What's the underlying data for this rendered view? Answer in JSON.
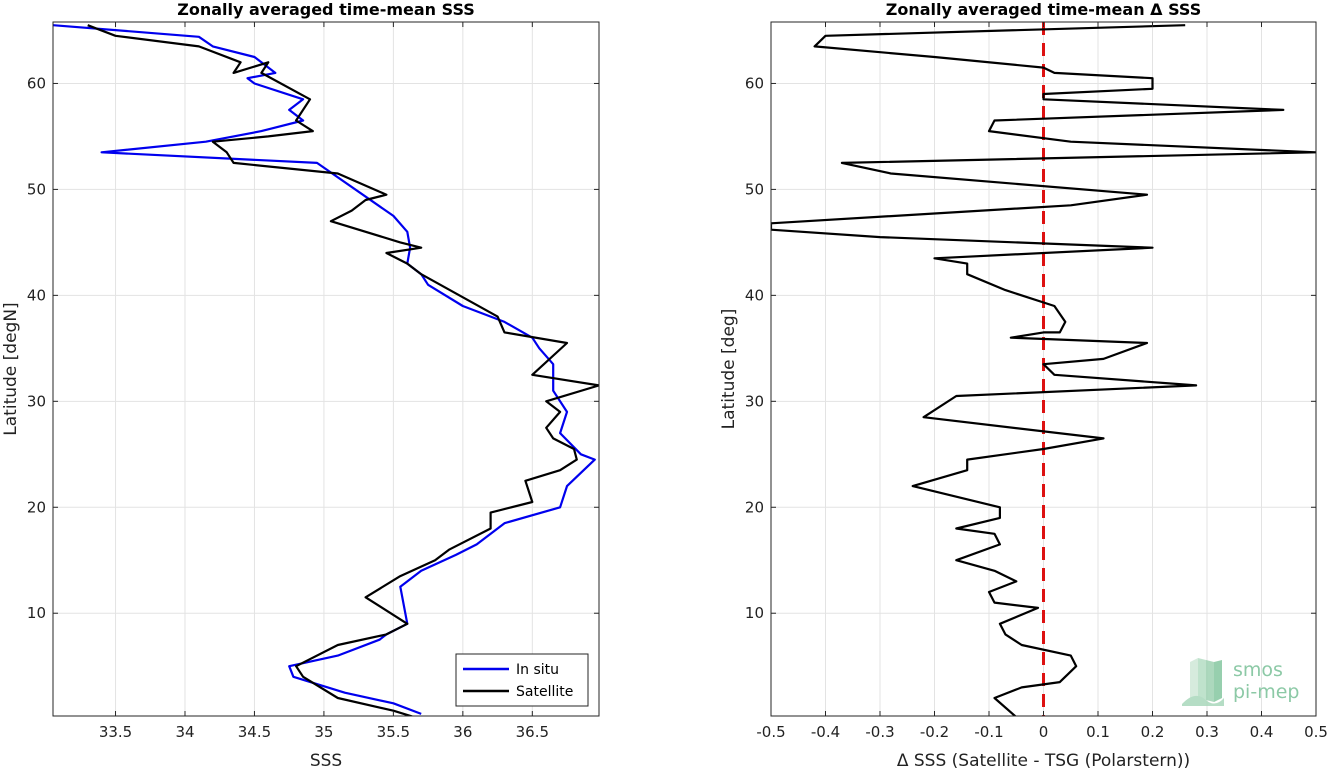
{
  "chart_data": [
    {
      "type": "line",
      "title": "Zonally averaged time-mean SSS",
      "xlabel": "SSS",
      "ylabel": "Latitude [degN]",
      "xlim": [
        33.05,
        36.98
      ],
      "ylim": [
        0.3,
        65.8
      ],
      "xticks": [
        "33.5",
        "34",
        "34.5",
        "35",
        "35.5",
        "36",
        "36.5"
      ],
      "xtick_values": [
        33.5,
        34,
        34.5,
        35,
        35.5,
        36,
        36.5
      ],
      "yticks": [
        "10",
        "20",
        "30",
        "40",
        "50",
        "60"
      ],
      "ytick_values": [
        10,
        20,
        30,
        40,
        50,
        60
      ],
      "grid": true,
      "legend_position": "bottom-right",
      "series": [
        {
          "name": "In situ",
          "color": "#0000ee",
          "x": [
            33.05,
            34.1,
            34.2,
            34.5,
            34.65,
            34.45,
            34.5,
            34.85,
            34.75,
            34.85,
            34.55,
            34.15,
            33.4,
            34.95,
            35.5,
            35.6,
            35.62,
            35.6,
            35.7,
            35.75,
            36.0,
            36.3,
            36.5,
            36.55,
            36.65,
            36.65,
            36.75,
            36.7,
            36.85,
            36.95,
            36.75,
            36.7,
            36.3,
            36.1,
            35.95,
            35.7,
            35.55,
            35.6,
            35.45,
            35.4,
            35.1,
            34.75,
            34.78,
            35.15,
            35.5,
            35.7
          ],
          "y": [
            65.5,
            64.4,
            63.5,
            62.5,
            61.0,
            60.5,
            60.0,
            58.5,
            57.5,
            56.5,
            55.5,
            54.5,
            53.5,
            52.5,
            47.5,
            46.0,
            44.5,
            43.0,
            42.0,
            41.0,
            39.0,
            37.5,
            36.0,
            35.0,
            33.5,
            31.0,
            29.0,
            27.0,
            25.0,
            24.5,
            22.0,
            20.0,
            18.5,
            16.5,
            15.5,
            14.0,
            12.5,
            9.0,
            8.0,
            7.5,
            6.0,
            5.0,
            4.0,
            2.5,
            1.5,
            0.5
          ]
        },
        {
          "name": "Satellite",
          "color": "#000000",
          "x": [
            33.3,
            33.5,
            34.1,
            34.4,
            34.35,
            34.6,
            34.55,
            34.9,
            34.8,
            34.92,
            34.6,
            34.2,
            34.3,
            34.35,
            35.1,
            35.45,
            35.3,
            35.2,
            35.05,
            35.55,
            35.7,
            35.45,
            35.6,
            35.7,
            36.25,
            36.3,
            36.75,
            36.5,
            36.98,
            36.6,
            36.7,
            36.6,
            36.65,
            36.8,
            36.82,
            36.7,
            36.45,
            36.5,
            36.2,
            36.2,
            35.9,
            35.8,
            35.55,
            35.3,
            35.6,
            35.45,
            35.1,
            34.8,
            34.85,
            35.1,
            35.5,
            35.65,
            35.5
          ],
          "y": [
            65.5,
            64.5,
            63.5,
            62.0,
            61.0,
            62.0,
            61.0,
            58.5,
            56.5,
            55.5,
            55.0,
            54.5,
            53.5,
            52.5,
            51.5,
            49.5,
            49.0,
            48.0,
            47.0,
            45.0,
            44.5,
            44.0,
            43.0,
            42.0,
            38.0,
            36.5,
            35.5,
            32.5,
            31.5,
            30.0,
            29.0,
            27.5,
            26.5,
            25.5,
            24.5,
            23.5,
            22.5,
            20.5,
            19.5,
            18.0,
            16.0,
            15.0,
            13.5,
            11.5,
            9.0,
            8.0,
            7.0,
            5.0,
            4.0,
            2.0,
            0.8,
            0.2,
            0.0
          ]
        }
      ]
    },
    {
      "type": "line",
      "title": "Zonally averaged time-mean Δ SSS",
      "xlabel": "Δ SSS (Satellite - TSG (Polarstern))",
      "ylabel": "Latitude [deg]",
      "xlim": [
        -0.5,
        0.5
      ],
      "ylim": [
        0.3,
        65.8
      ],
      "xticks": [
        "-0.5",
        "-0.4",
        "-0.3",
        "-0.2",
        "-0.1",
        "0",
        "0.1",
        "0.2",
        "0.3",
        "0.4",
        "0.5"
      ],
      "xtick_values": [
        -0.5,
        -0.4,
        -0.3,
        -0.2,
        -0.1,
        0,
        0.1,
        0.2,
        0.3,
        0.4,
        0.5
      ],
      "yticks": [
        "10",
        "20",
        "30",
        "40",
        "50",
        "60"
      ],
      "ytick_values": [
        10,
        20,
        30,
        40,
        50,
        60
      ],
      "grid": true,
      "reference_line": {
        "x": 0,
        "color": "#dd1111",
        "style": "dashed"
      },
      "series": [
        {
          "color": "#000000",
          "x": [
            0.26,
            -0.4,
            -0.42,
            -0.2,
            0.0,
            0.02,
            0.2,
            0.2,
            0.0,
            0.0,
            0.44,
            -0.09,
            -0.1,
            0.05,
            0.5,
            -0.37,
            -0.28,
            0.19,
            0.05,
            -0.5,
            -0.5,
            -0.3,
            0.2,
            -0.2,
            -0.14,
            -0.14,
            -0.07,
            0.02,
            0.04,
            0.03,
            0.0,
            -0.06,
            0.19,
            0.11,
            0.0,
            0.02,
            0.28,
            -0.16,
            -0.22,
            0.11,
            0.0,
            -0.14,
            -0.14,
            -0.24,
            -0.08,
            -0.08,
            -0.16,
            -0.09,
            -0.08,
            -0.16,
            -0.09,
            -0.05,
            -0.1,
            -0.09,
            -0.01,
            -0.08,
            -0.07,
            -0.04,
            0.05,
            0.06,
            0.03,
            -0.04,
            -0.09,
            -0.05
          ],
          "y": [
            65.5,
            64.5,
            63.5,
            62.5,
            61.5,
            61.0,
            60.5,
            59.5,
            59.0,
            58.5,
            57.5,
            56.5,
            55.5,
            54.5,
            53.5,
            52.5,
            51.5,
            49.5,
            48.5,
            46.8,
            46.2,
            45.5,
            44.5,
            43.5,
            43.0,
            42.0,
            40.5,
            39.0,
            37.5,
            36.5,
            36.5,
            36.0,
            35.5,
            34.0,
            33.5,
            32.5,
            31.5,
            30.5,
            28.5,
            26.5,
            25.5,
            24.5,
            23.5,
            22.0,
            20.0,
            19.0,
            18.0,
            17.5,
            16.5,
            15.0,
            14.0,
            13.0,
            12.0,
            11.0,
            10.5,
            9.0,
            8.0,
            7.0,
            6.0,
            5.0,
            3.5,
            3.0,
            2.0,
            0.2
          ]
        }
      ]
    }
  ],
  "legend": {
    "entries": [
      "In situ",
      "Satellite"
    ]
  },
  "logo": {
    "line1": "smos",
    "line2": "pi-mep"
  }
}
